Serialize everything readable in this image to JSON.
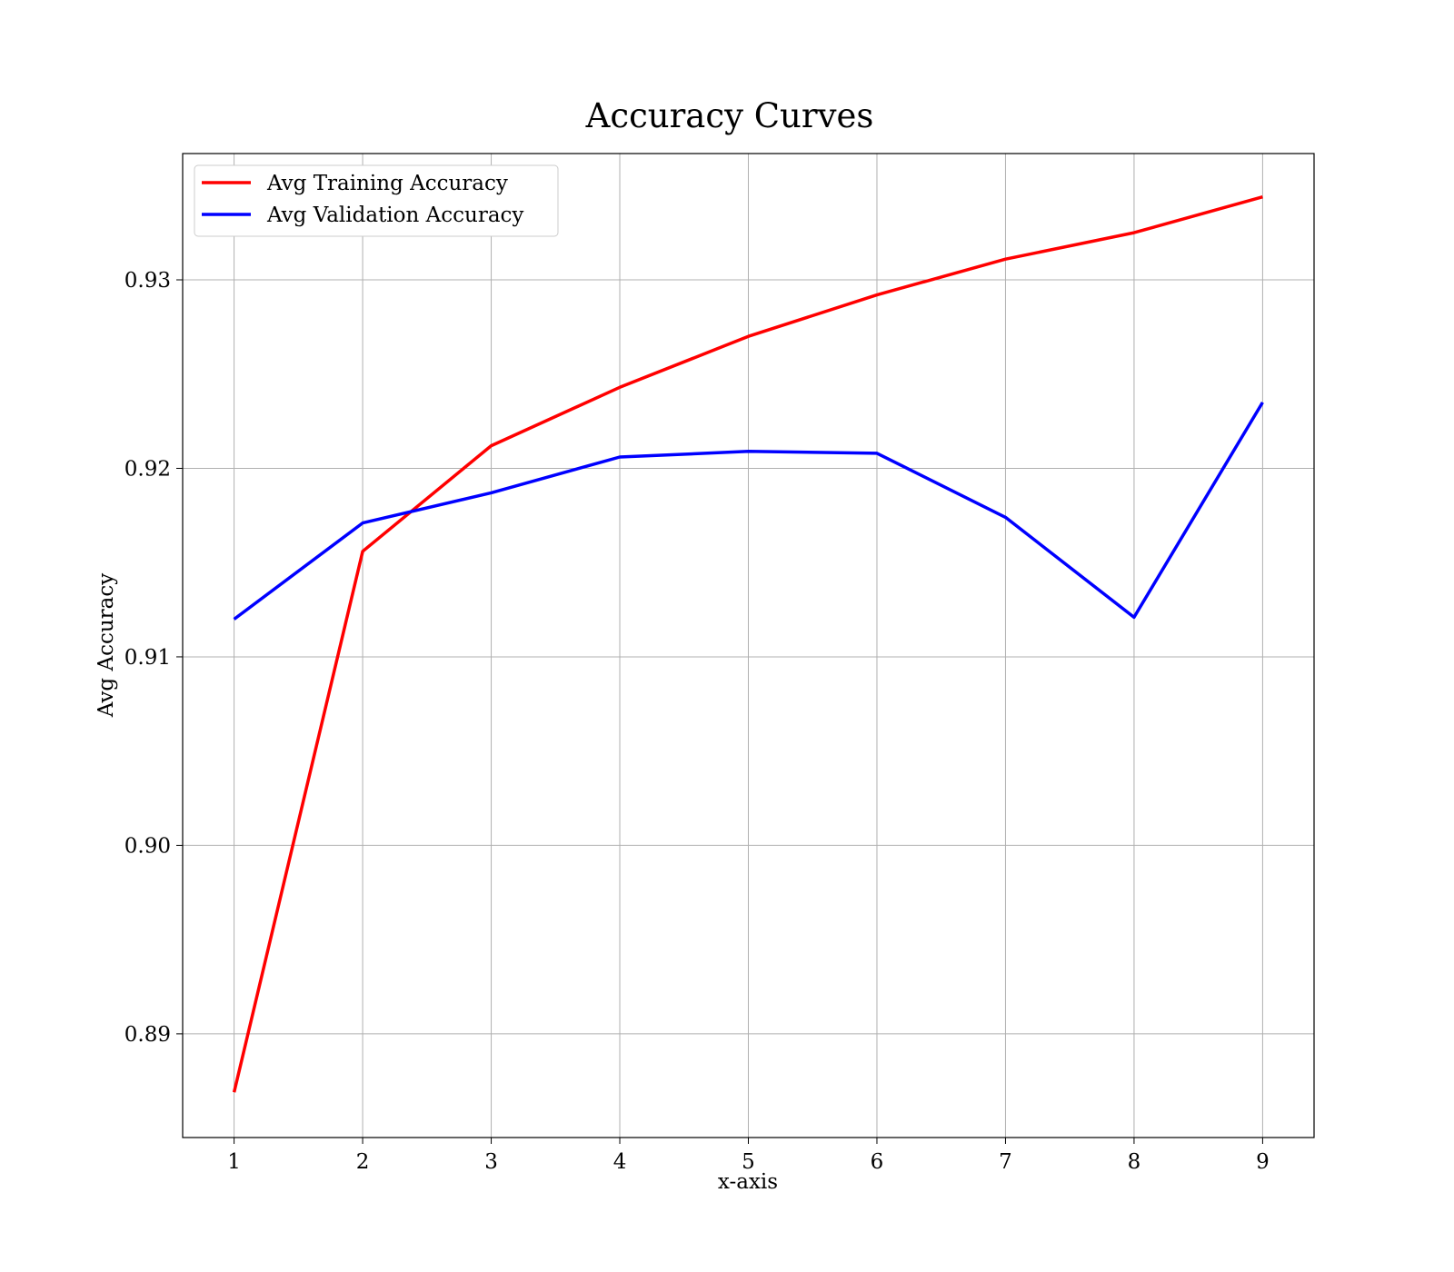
{
  "chart_data": {
    "type": "line",
    "title": "Accuracy Curves",
    "xlabel": "x-axis",
    "ylabel": "Avg Accuracy",
    "x": [
      1,
      2,
      3,
      4,
      5,
      6,
      7,
      8,
      9
    ],
    "xlim": [
      0.6,
      9.4
    ],
    "ylim": [
      0.8845,
      0.9367
    ],
    "yticks": [
      0.89,
      0.9,
      0.91,
      0.92,
      0.93
    ],
    "ytick_labels": [
      "0.89",
      "0.90",
      "0.91",
      "0.92",
      "0.93"
    ],
    "xtick_labels": [
      "1",
      "2",
      "3",
      "4",
      "5",
      "6",
      "7",
      "8",
      "9"
    ],
    "grid": true,
    "legend_position": "top-left",
    "series": [
      {
        "name": "Avg Training Accuracy",
        "color": "#ff0000",
        "values": [
          0.8869,
          0.9156,
          0.9212,
          0.9243,
          0.927,
          0.9292,
          0.9311,
          0.9325,
          0.9344
        ]
      },
      {
        "name": "Avg Validation Accuracy",
        "color": "#0000ff",
        "values": [
          0.912,
          0.9171,
          0.9187,
          0.9206,
          0.9209,
          0.9208,
          0.9174,
          0.9121,
          0.9235
        ]
      }
    ]
  }
}
